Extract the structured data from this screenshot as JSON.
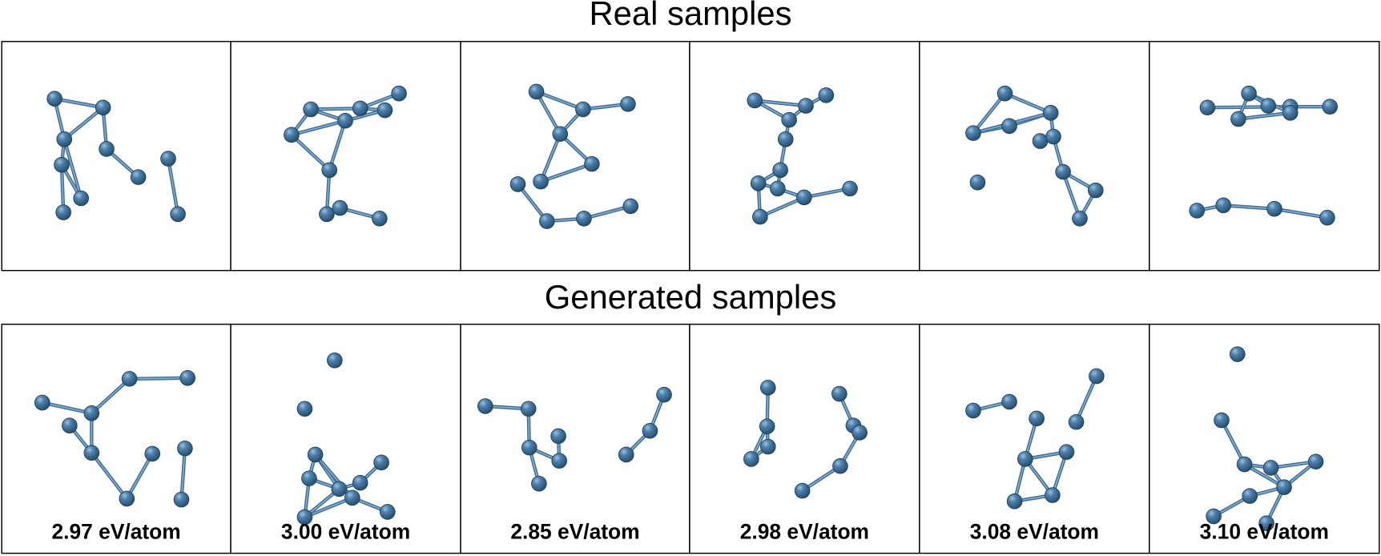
{
  "real_section": {
    "title": "Real samples"
  },
  "generated_section": {
    "title": "Generated samples",
    "energies": [
      "2.97 eV/atom",
      "3.00 eV/atom",
      "2.85 eV/atom",
      "2.98 eV/atom",
      "3.08 eV/atom",
      "3.10 eV/atom"
    ]
  }
}
